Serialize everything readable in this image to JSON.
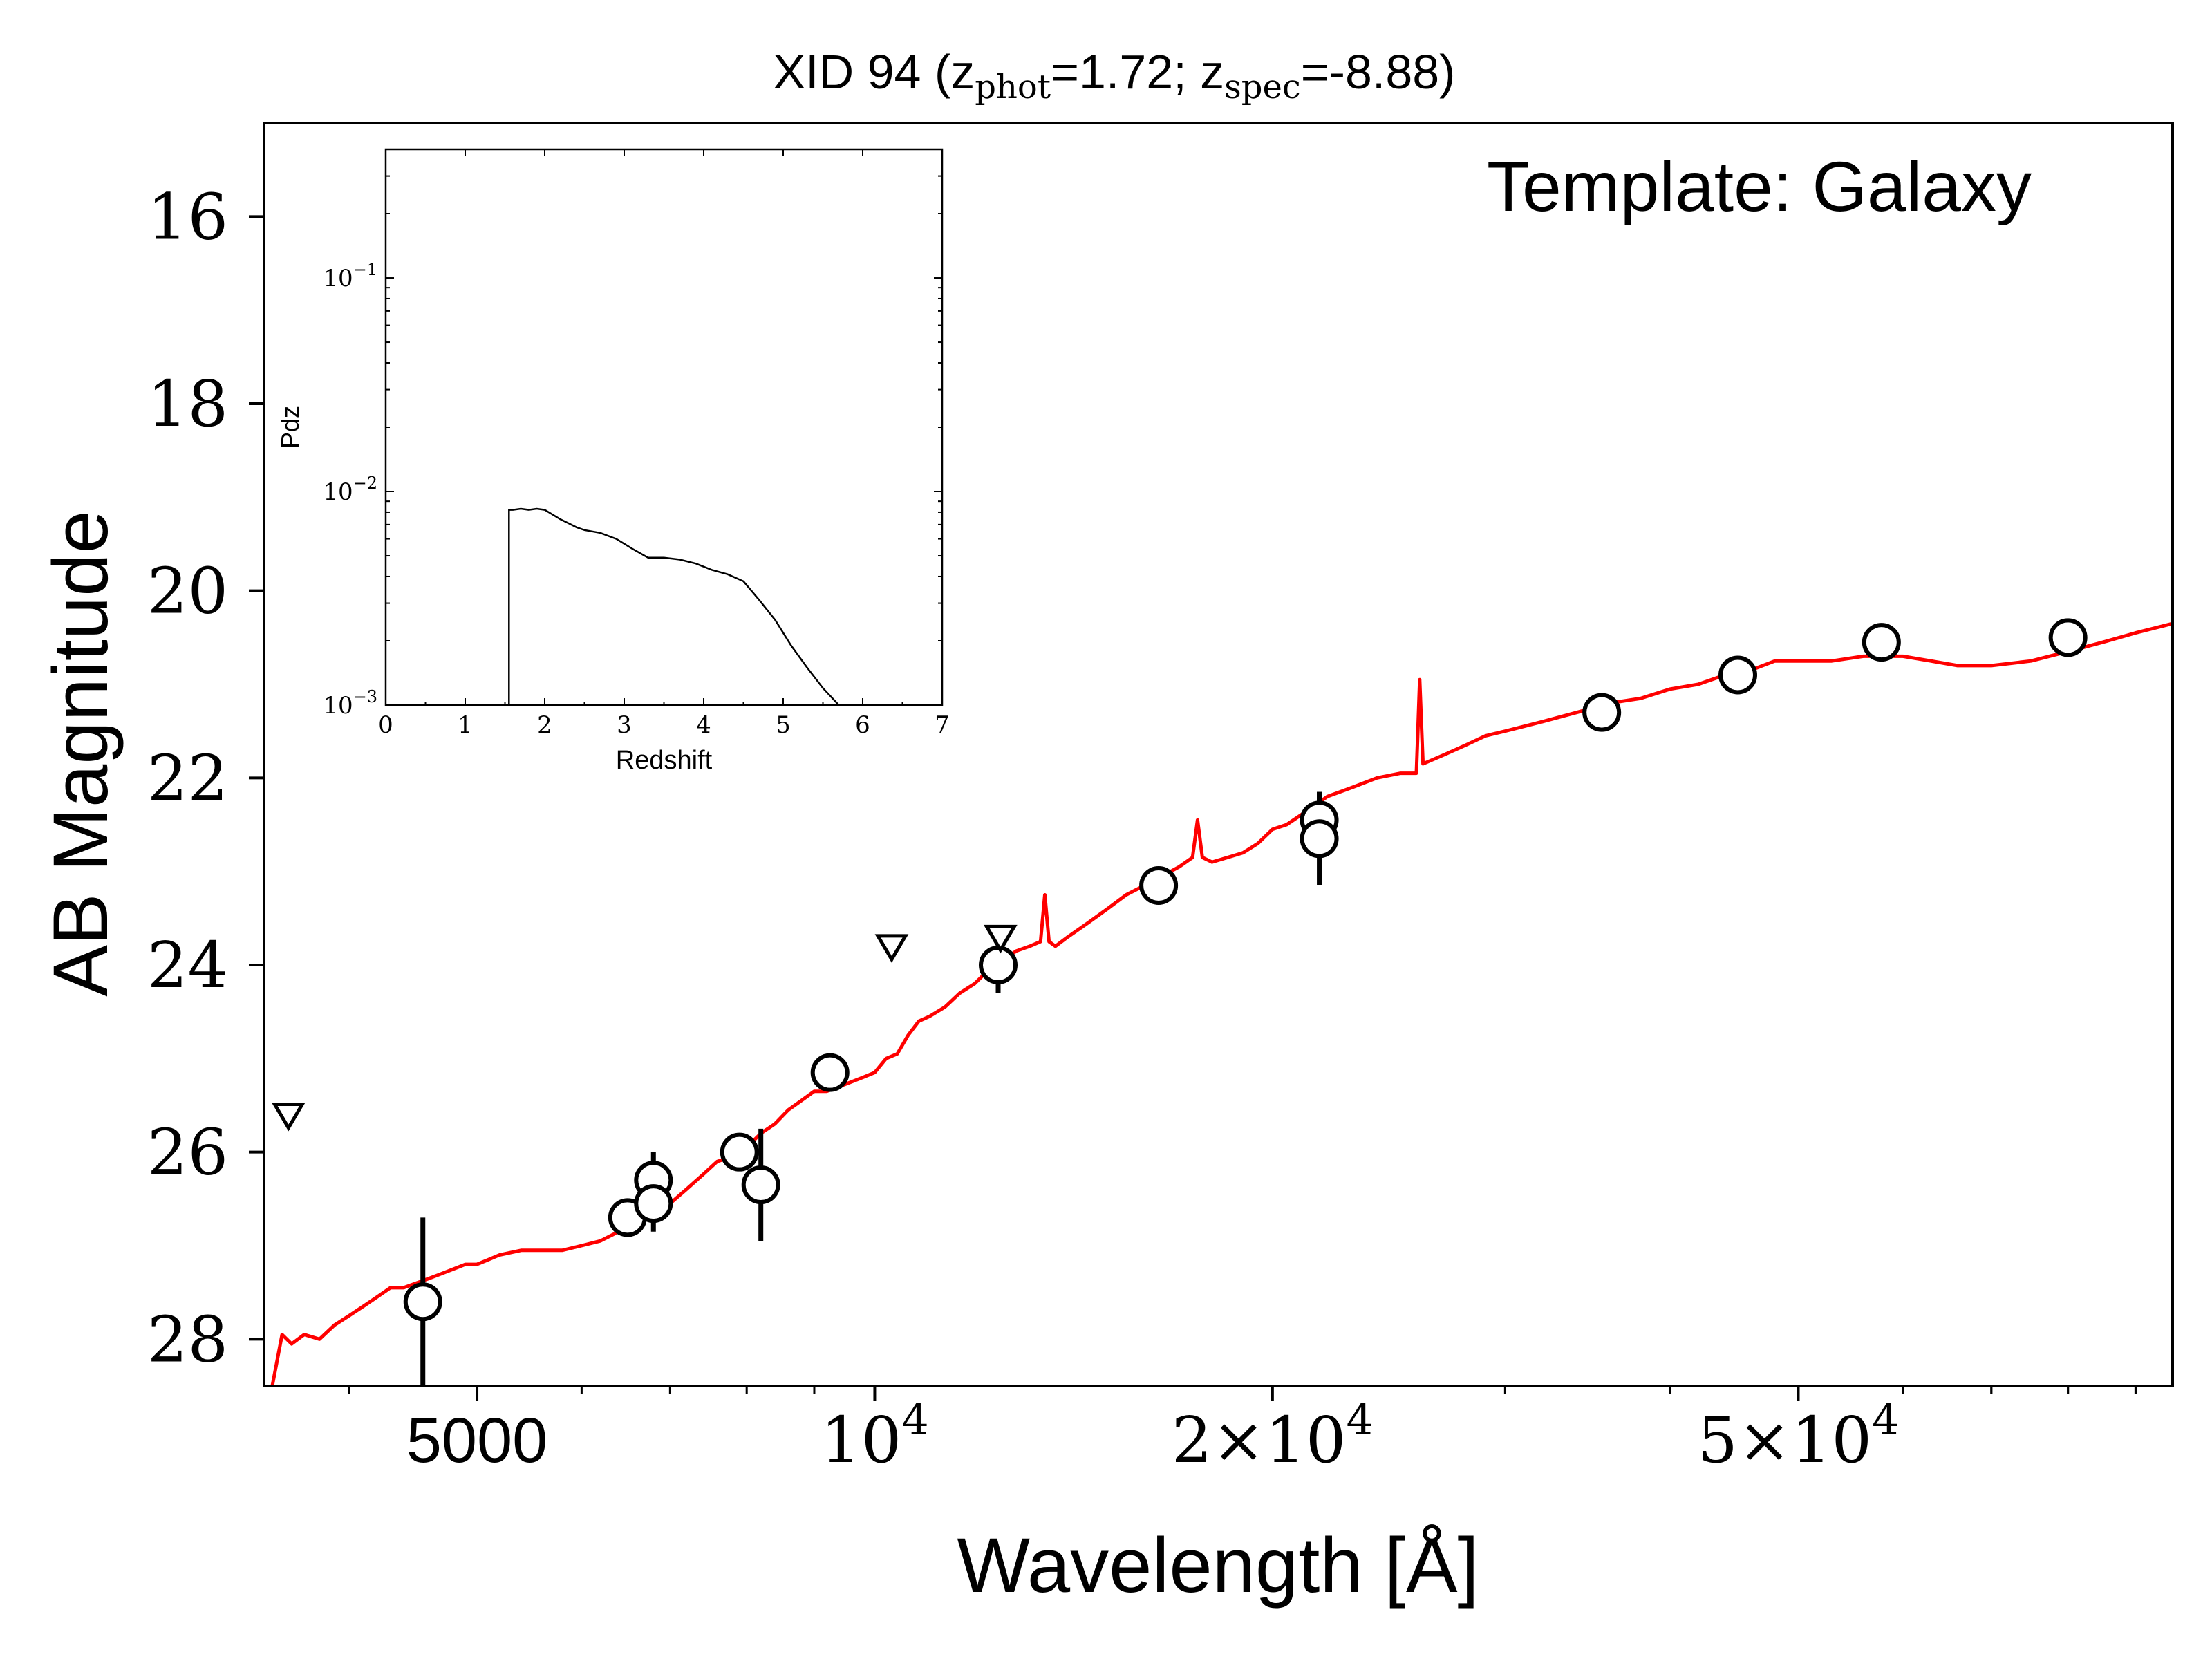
{
  "chart_data": [
    {
      "type": "scatter",
      "title": "XID 94 (z",
      "title_sub_phot": "phot",
      "title_mid": "=1.72; z",
      "title_sub_spec": "spec",
      "title_end": "=-8.88)",
      "xlabel": "Wavelength [Å]",
      "ylabel": "AB Magnitude",
      "x_scale": "log",
      "xlim": [
        3450,
        96000
      ],
      "ylim": [
        28.5,
        15.0
      ],
      "y_inverted": true,
      "xticks": [
        {
          "value": 5000,
          "label": "5000",
          "kind": "plain"
        },
        {
          "value": 10000,
          "label": "10",
          "exp": "4",
          "kind": "pow"
        },
        {
          "value": 20000,
          "label": "2×10",
          "exp": "4",
          "kind": "pow"
        },
        {
          "value": 50000,
          "label": "5×10",
          "exp": "4",
          "kind": "pow"
        }
      ],
      "yticks": [
        16,
        18,
        20,
        22,
        24,
        26,
        28
      ],
      "annotation": "Template: Galaxy",
      "detections": [
        {
          "x": 4550,
          "y": 27.6,
          "err": 0.9
        },
        {
          "x": 6500,
          "y": 26.7,
          "err": 0.0
        },
        {
          "x": 6800,
          "y": 26.3,
          "err": 0.3
        },
        {
          "x": 6800,
          "y": 26.55,
          "err": 0.3
        },
        {
          "x": 7900,
          "y": 26.0,
          "err": 0.0
        },
        {
          "x": 8200,
          "y": 26.35,
          "err": 0.6
        },
        {
          "x": 9250,
          "y": 25.15,
          "err": 0.0
        },
        {
          "x": 12400,
          "y": 24.0,
          "err": 0.3
        },
        {
          "x": 16400,
          "y": 23.15,
          "err": 0.0
        },
        {
          "x": 21700,
          "y": 22.45,
          "err": 0.3
        },
        {
          "x": 21700,
          "y": 22.65,
          "err": 0.5
        },
        {
          "x": 35500,
          "y": 21.3,
          "err": 0.0
        },
        {
          "x": 45000,
          "y": 20.9,
          "err": 0.0
        },
        {
          "x": 57800,
          "y": 20.55,
          "err": 0.0
        },
        {
          "x": 80000,
          "y": 20.5,
          "err": 0.0
        }
      ],
      "upper_limits": [
        {
          "x": 3600,
          "y": 25.6
        },
        {
          "x": 10300,
          "y": 23.8
        },
        {
          "x": 12450,
          "y": 23.7
        }
      ],
      "model": {
        "name": "Galaxy template",
        "color": "#ff0000",
        "x": [
          3500,
          3560,
          3620,
          3700,
          3800,
          3900,
          4000,
          4100,
          4200,
          4300,
          4400,
          4500,
          4600,
          4700,
          4800,
          4900,
          5000,
          5100,
          5200,
          5400,
          5600,
          5800,
          6000,
          6200,
          6400,
          6600,
          6800,
          7000,
          7200,
          7400,
          7600,
          7800,
          8000,
          8200,
          8400,
          8600,
          8800,
          9000,
          9200,
          9400,
          9600,
          9800,
          10000,
          10200,
          10400,
          10600,
          10800,
          11000,
          11300,
          11600,
          11900,
          12200,
          12500,
          12800,
          13100,
          13350,
          13450,
          13550,
          13700,
          14000,
          14500,
          15000,
          15500,
          16000,
          16500,
          17000,
          17400,
          17550,
          17700,
          18000,
          18500,
          19000,
          19500,
          20000,
          20500,
          21000,
          21500,
          22000,
          23000,
          24000,
          25000,
          25700,
          25850,
          26000,
          27000,
          28000,
          29000,
          30000,
          32000,
          34000,
          36000,
          38000,
          40000,
          42000,
          44000,
          46000,
          48000,
          50000,
          53000,
          56000,
          60000,
          63000,
          66000,
          70000,
          75000,
          80000,
          85000,
          90000,
          96000
        ],
        "y": [
          28.5,
          27.95,
          28.05,
          27.95,
          28.0,
          27.85,
          27.75,
          27.65,
          27.55,
          27.45,
          27.45,
          27.4,
          27.35,
          27.3,
          27.25,
          27.2,
          27.2,
          27.15,
          27.1,
          27.05,
          27.05,
          27.05,
          27.0,
          26.95,
          26.85,
          26.75,
          26.65,
          26.55,
          26.4,
          26.25,
          26.1,
          26.05,
          25.95,
          25.8,
          25.7,
          25.55,
          25.45,
          25.35,
          25.35,
          25.3,
          25.25,
          25.2,
          25.15,
          25.0,
          24.95,
          24.75,
          24.6,
          24.55,
          24.45,
          24.3,
          24.2,
          24.05,
          23.95,
          23.85,
          23.8,
          23.75,
          23.25,
          23.75,
          23.8,
          23.7,
          23.55,
          23.4,
          23.25,
          23.15,
          23.05,
          22.95,
          22.85,
          22.45,
          22.85,
          22.9,
          22.85,
          22.8,
          22.7,
          22.55,
          22.5,
          22.4,
          22.3,
          22.2,
          22.1,
          22.0,
          21.95,
          21.95,
          20.95,
          21.85,
          21.75,
          21.65,
          21.55,
          21.5,
          21.4,
          21.3,
          21.2,
          21.15,
          21.05,
          21.0,
          20.9,
          20.85,
          20.75,
          20.75,
          20.75,
          20.7,
          20.7,
          20.75,
          20.8,
          20.8,
          20.75,
          20.65,
          20.55,
          20.45,
          20.35
        ]
      }
    },
    {
      "type": "line",
      "name": "inset",
      "xlabel": "Redshift",
      "ylabel": "Pdz",
      "y_scale": "log",
      "xlim": [
        0,
        7
      ],
      "ylim": [
        0.001,
        0.4
      ],
      "xticks": [
        0,
        1,
        2,
        3,
        4,
        5,
        6,
        7
      ],
      "yticks": [
        {
          "value": 0.001,
          "base": "10",
          "exp": "−3"
        },
        {
          "value": 0.01,
          "base": "10",
          "exp": "−2"
        },
        {
          "value": 0.1,
          "base": "10",
          "exp": "−1"
        }
      ],
      "x": [
        1.55,
        1.55,
        1.6,
        1.7,
        1.8,
        1.9,
        2.0,
        2.1,
        2.2,
        2.3,
        2.4,
        2.5,
        2.7,
        2.9,
        3.1,
        3.3,
        3.5,
        3.7,
        3.9,
        4.1,
        4.3,
        4.5,
        4.7,
        4.9,
        5.1,
        5.3,
        5.5,
        5.7
      ],
      "y": [
        0.001,
        0.0082,
        0.0082,
        0.0083,
        0.0082,
        0.0083,
        0.0082,
        0.0078,
        0.0074,
        0.0071,
        0.0068,
        0.0066,
        0.0064,
        0.006,
        0.0054,
        0.0049,
        0.0049,
        0.0048,
        0.0046,
        0.0043,
        0.0041,
        0.0038,
        0.0031,
        0.0025,
        0.0019,
        0.0015,
        0.0012,
        0.001
      ]
    }
  ]
}
